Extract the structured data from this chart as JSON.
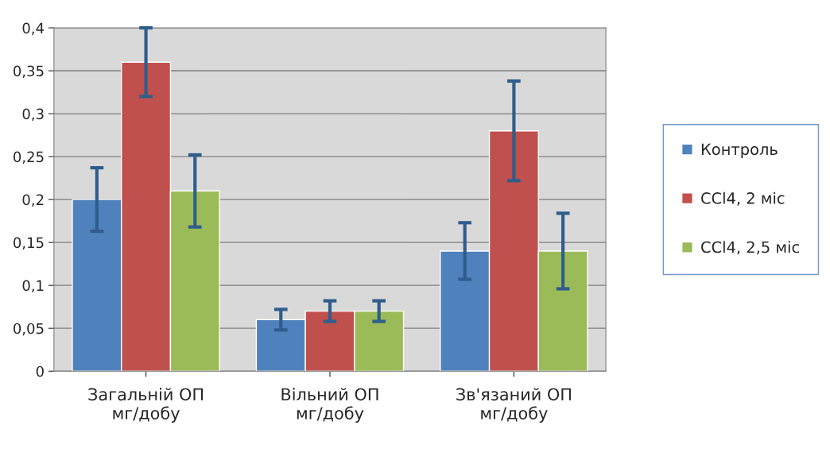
{
  "chart_data": {
    "type": "bar",
    "categories": [
      "Загальній ОП\nмг/добу",
      "Вільний ОП\nмг/добу",
      "Зв'язаний ОП\nмг/добу"
    ],
    "series": [
      {
        "name": "Контроль",
        "color": "#4f81bd",
        "values": [
          0.2,
          0.06,
          0.14
        ],
        "errors": [
          0.037,
          0.012,
          0.033
        ]
      },
      {
        "name": "CCl4, 2 міс",
        "color": "#c0504d",
        "values": [
          0.36,
          0.07,
          0.28
        ],
        "errors": [
          0.04,
          0.012,
          0.058
        ]
      },
      {
        "name": "CCl4, 2,5 міс",
        "color": "#9bbb59",
        "values": [
          0.21,
          0.07,
          0.14
        ],
        "errors": [
          0.042,
          0.012,
          0.044
        ]
      }
    ],
    "ylim": [
      0,
      0.4
    ],
    "yticks": [
      0,
      {
        "value": 0.05,
        "label": "0,05"
      },
      {
        "value": 0.1,
        "label": "0,1"
      },
      {
        "value": 0.15,
        "label": "0,15"
      },
      {
        "value": 0.2,
        "label": "0,2"
      },
      {
        "value": 0.25,
        "label": "0,25"
      },
      {
        "value": 0.3,
        "label": "0,3"
      },
      {
        "value": 0.35,
        "label": "0,35"
      },
      {
        "value": 0.4,
        "label": "0,4"
      }
    ],
    "grid": "y",
    "legend": "right"
  }
}
